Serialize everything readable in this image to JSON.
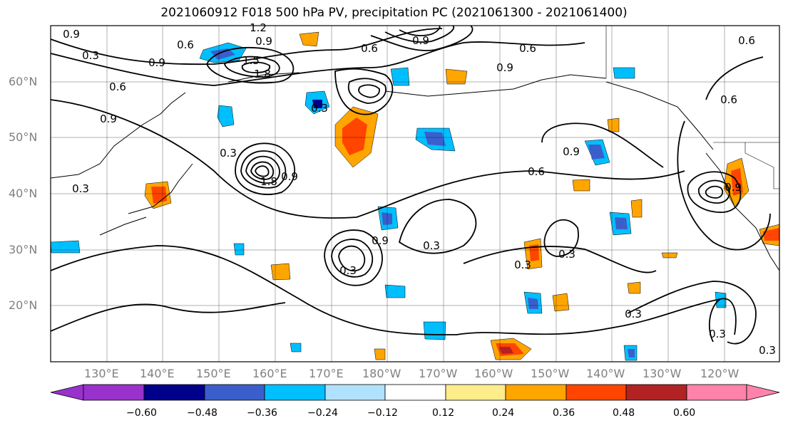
{
  "title": "2021060912 F018 500 hPa PV, precipitation PC (2021061300 - 2021061400)",
  "lat_labels": [
    "60°N",
    "50°N",
    "40°N",
    "30°N",
    "20°N"
  ],
  "lon_labels": [
    "130°E",
    "140°E",
    "150°E",
    "160°E",
    "170°E",
    "180°W",
    "170°W",
    "160°W",
    "150°W",
    "140°W",
    "130°W",
    "120°W"
  ],
  "contour_labels": [
    "0.9",
    "0.6",
    "0.3",
    "0.9",
    "1.2",
    "0.9",
    "1.5",
    "1.8",
    "0.6",
    "0.3",
    "0.6",
    "0.9",
    "0.6",
    "0.9",
    "0.6",
    "0.3",
    "0.9",
    "0.3",
    "0.9",
    "1.8",
    "0.9",
    "0.3",
    "0.6",
    "0.3",
    "0.3",
    "0.3",
    "0.9",
    "0.6",
    "0.9",
    "0.3",
    "0.3",
    "0.3"
  ],
  "colorbar": {
    "ticks": [
      "−0.60",
      "−0.48",
      "−0.36",
      "−0.24",
      "−0.12",
      "0.12",
      "0.24",
      "0.36",
      "0.48",
      "0.60"
    ],
    "colors": [
      "#9932CC",
      "#00008B",
      "#3A5FCD",
      "#00BFFF",
      "#B0E2FF",
      "#FFFFFF",
      "#FFEC8B",
      "#FFA500",
      "#FF4500",
      "#B22222",
      "#FF82AB"
    ]
  }
}
